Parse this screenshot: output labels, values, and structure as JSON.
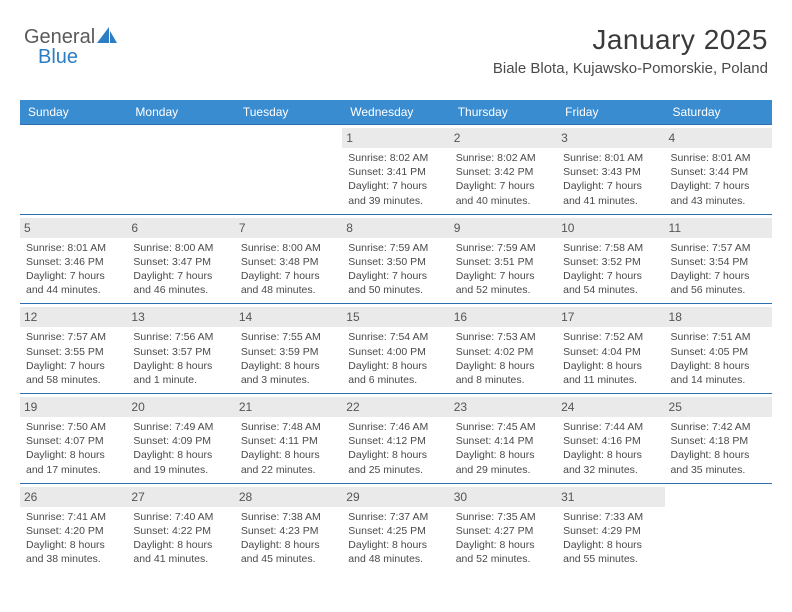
{
  "logo": {
    "text1": "General",
    "text2": "Blue"
  },
  "header": {
    "month_title": "January 2025",
    "location": "Biale Blota, Kujawsko-Pomorskie, Poland"
  },
  "colors": {
    "header_bar": "#3a8cd1",
    "row_rule": "#2b6fb0",
    "daynum_bg": "#eaeaea",
    "text": "#4a4a4a",
    "logo_blue": "#2b7dc4"
  },
  "daysOfWeek": [
    "Sunday",
    "Monday",
    "Tuesday",
    "Wednesday",
    "Thursday",
    "Friday",
    "Saturday"
  ],
  "weeks": [
    [
      {
        "empty": true
      },
      {
        "empty": true
      },
      {
        "empty": true
      },
      {
        "n": "1",
        "sr": "Sunrise: 8:02 AM",
        "ss": "Sunset: 3:41 PM",
        "dl1": "Daylight: 7 hours",
        "dl2": "and 39 minutes."
      },
      {
        "n": "2",
        "sr": "Sunrise: 8:02 AM",
        "ss": "Sunset: 3:42 PM",
        "dl1": "Daylight: 7 hours",
        "dl2": "and 40 minutes."
      },
      {
        "n": "3",
        "sr": "Sunrise: 8:01 AM",
        "ss": "Sunset: 3:43 PM",
        "dl1": "Daylight: 7 hours",
        "dl2": "and 41 minutes."
      },
      {
        "n": "4",
        "sr": "Sunrise: 8:01 AM",
        "ss": "Sunset: 3:44 PM",
        "dl1": "Daylight: 7 hours",
        "dl2": "and 43 minutes."
      }
    ],
    [
      {
        "n": "5",
        "sr": "Sunrise: 8:01 AM",
        "ss": "Sunset: 3:46 PM",
        "dl1": "Daylight: 7 hours",
        "dl2": "and 44 minutes."
      },
      {
        "n": "6",
        "sr": "Sunrise: 8:00 AM",
        "ss": "Sunset: 3:47 PM",
        "dl1": "Daylight: 7 hours",
        "dl2": "and 46 minutes."
      },
      {
        "n": "7",
        "sr": "Sunrise: 8:00 AM",
        "ss": "Sunset: 3:48 PM",
        "dl1": "Daylight: 7 hours",
        "dl2": "and 48 minutes."
      },
      {
        "n": "8",
        "sr": "Sunrise: 7:59 AM",
        "ss": "Sunset: 3:50 PM",
        "dl1": "Daylight: 7 hours",
        "dl2": "and 50 minutes."
      },
      {
        "n": "9",
        "sr": "Sunrise: 7:59 AM",
        "ss": "Sunset: 3:51 PM",
        "dl1": "Daylight: 7 hours",
        "dl2": "and 52 minutes."
      },
      {
        "n": "10",
        "sr": "Sunrise: 7:58 AM",
        "ss": "Sunset: 3:52 PM",
        "dl1": "Daylight: 7 hours",
        "dl2": "and 54 minutes."
      },
      {
        "n": "11",
        "sr": "Sunrise: 7:57 AM",
        "ss": "Sunset: 3:54 PM",
        "dl1": "Daylight: 7 hours",
        "dl2": "and 56 minutes."
      }
    ],
    [
      {
        "n": "12",
        "sr": "Sunrise: 7:57 AM",
        "ss": "Sunset: 3:55 PM",
        "dl1": "Daylight: 7 hours",
        "dl2": "and 58 minutes."
      },
      {
        "n": "13",
        "sr": "Sunrise: 7:56 AM",
        "ss": "Sunset: 3:57 PM",
        "dl1": "Daylight: 8 hours",
        "dl2": "and 1 minute."
      },
      {
        "n": "14",
        "sr": "Sunrise: 7:55 AM",
        "ss": "Sunset: 3:59 PM",
        "dl1": "Daylight: 8 hours",
        "dl2": "and 3 minutes."
      },
      {
        "n": "15",
        "sr": "Sunrise: 7:54 AM",
        "ss": "Sunset: 4:00 PM",
        "dl1": "Daylight: 8 hours",
        "dl2": "and 6 minutes."
      },
      {
        "n": "16",
        "sr": "Sunrise: 7:53 AM",
        "ss": "Sunset: 4:02 PM",
        "dl1": "Daylight: 8 hours",
        "dl2": "and 8 minutes."
      },
      {
        "n": "17",
        "sr": "Sunrise: 7:52 AM",
        "ss": "Sunset: 4:04 PM",
        "dl1": "Daylight: 8 hours",
        "dl2": "and 11 minutes."
      },
      {
        "n": "18",
        "sr": "Sunrise: 7:51 AM",
        "ss": "Sunset: 4:05 PM",
        "dl1": "Daylight: 8 hours",
        "dl2": "and 14 minutes."
      }
    ],
    [
      {
        "n": "19",
        "sr": "Sunrise: 7:50 AM",
        "ss": "Sunset: 4:07 PM",
        "dl1": "Daylight: 8 hours",
        "dl2": "and 17 minutes."
      },
      {
        "n": "20",
        "sr": "Sunrise: 7:49 AM",
        "ss": "Sunset: 4:09 PM",
        "dl1": "Daylight: 8 hours",
        "dl2": "and 19 minutes."
      },
      {
        "n": "21",
        "sr": "Sunrise: 7:48 AM",
        "ss": "Sunset: 4:11 PM",
        "dl1": "Daylight: 8 hours",
        "dl2": "and 22 minutes."
      },
      {
        "n": "22",
        "sr": "Sunrise: 7:46 AM",
        "ss": "Sunset: 4:12 PM",
        "dl1": "Daylight: 8 hours",
        "dl2": "and 25 minutes."
      },
      {
        "n": "23",
        "sr": "Sunrise: 7:45 AM",
        "ss": "Sunset: 4:14 PM",
        "dl1": "Daylight: 8 hours",
        "dl2": "and 29 minutes."
      },
      {
        "n": "24",
        "sr": "Sunrise: 7:44 AM",
        "ss": "Sunset: 4:16 PM",
        "dl1": "Daylight: 8 hours",
        "dl2": "and 32 minutes."
      },
      {
        "n": "25",
        "sr": "Sunrise: 7:42 AM",
        "ss": "Sunset: 4:18 PM",
        "dl1": "Daylight: 8 hours",
        "dl2": "and 35 minutes."
      }
    ],
    [
      {
        "n": "26",
        "sr": "Sunrise: 7:41 AM",
        "ss": "Sunset: 4:20 PM",
        "dl1": "Daylight: 8 hours",
        "dl2": "and 38 minutes."
      },
      {
        "n": "27",
        "sr": "Sunrise: 7:40 AM",
        "ss": "Sunset: 4:22 PM",
        "dl1": "Daylight: 8 hours",
        "dl2": "and 41 minutes."
      },
      {
        "n": "28",
        "sr": "Sunrise: 7:38 AM",
        "ss": "Sunset: 4:23 PM",
        "dl1": "Daylight: 8 hours",
        "dl2": "and 45 minutes."
      },
      {
        "n": "29",
        "sr": "Sunrise: 7:37 AM",
        "ss": "Sunset: 4:25 PM",
        "dl1": "Daylight: 8 hours",
        "dl2": "and 48 minutes."
      },
      {
        "n": "30",
        "sr": "Sunrise: 7:35 AM",
        "ss": "Sunset: 4:27 PM",
        "dl1": "Daylight: 8 hours",
        "dl2": "and 52 minutes."
      },
      {
        "n": "31",
        "sr": "Sunrise: 7:33 AM",
        "ss": "Sunset: 4:29 PM",
        "dl1": "Daylight: 8 hours",
        "dl2": "and 55 minutes."
      },
      {
        "empty": true
      }
    ]
  ]
}
